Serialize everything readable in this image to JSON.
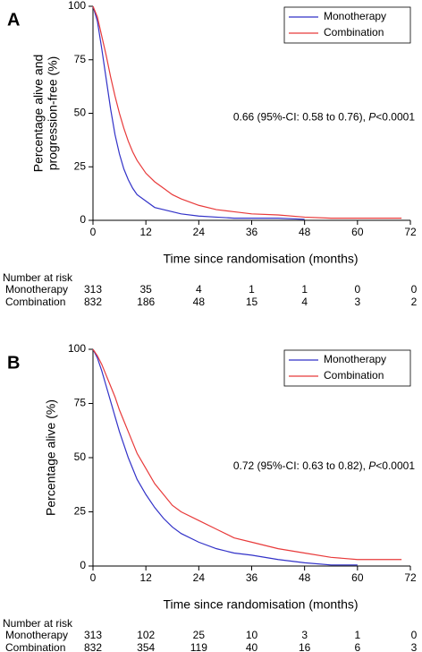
{
  "chart_data": [
    {
      "type": "line",
      "panel": "A",
      "ylabel": [
        "Percentage alive and",
        "progression-free (%)"
      ],
      "xlabel": "Time since randomisation (months)",
      "x": [
        0,
        1,
        2,
        3,
        4,
        5,
        6,
        7,
        8,
        9,
        10,
        12,
        14,
        16,
        18,
        20,
        24,
        28,
        32,
        36,
        42,
        48,
        54,
        60,
        66,
        70
      ],
      "series": [
        {
          "name": "Monotherapy",
          "color": "#3232c8",
          "values": [
            100,
            93,
            80,
            66,
            52,
            40,
            31,
            24,
            19,
            15,
            12,
            9,
            6,
            5,
            4,
            3,
            2,
            1.5,
            1,
            1,
            1,
            0.5,
            null,
            null,
            null,
            null
          ]
        },
        {
          "name": "Combination",
          "color": "#e83a3a",
          "values": [
            100,
            95,
            86,
            77,
            67,
            58,
            50,
            43,
            37,
            32,
            28,
            22,
            18,
            15,
            12,
            10,
            7,
            5,
            4,
            3,
            2.5,
            1.5,
            1,
            1,
            1,
            1
          ]
        }
      ],
      "xlim": [
        0,
        72
      ],
      "ylim": [
        0,
        100
      ],
      "xticks": [
        0,
        12,
        24,
        36,
        48,
        60,
        72
      ],
      "yticks": [
        0,
        25,
        50,
        75,
        100
      ],
      "legend": "top-right",
      "annotation": [
        "0.66 (95%-CI: 0.58 to 0.76), ",
        "P",
        "<0.0001"
      ],
      "risk_table": {
        "title": "Number  at risk",
        "rows": [
          {
            "name": "Monotherapy",
            "values": [
              313,
              35,
              4,
              1,
              1,
              0,
              0
            ]
          },
          {
            "name": "Combination",
            "values": [
              832,
              186,
              48,
              15,
              4,
              3,
              2
            ]
          }
        ]
      }
    },
    {
      "type": "line",
      "panel": "B",
      "ylabel": [
        "Percentage alive (%)"
      ],
      "xlabel": "Time since randomisation (months)",
      "x": [
        0,
        1,
        2,
        3,
        4,
        5,
        6,
        7,
        8,
        9,
        10,
        12,
        14,
        16,
        18,
        20,
        24,
        28,
        32,
        36,
        42,
        48,
        54,
        60,
        66,
        70
      ],
      "series": [
        {
          "name": "Monotherapy",
          "color": "#3232c8",
          "values": [
            100,
            96,
            90,
            83,
            76,
            69,
            62,
            56,
            50,
            45,
            40,
            33,
            27,
            22,
            18,
            15,
            11,
            8,
            6,
            5,
            3,
            1.5,
            0.5,
            0.5,
            null,
            null
          ]
        },
        {
          "name": "Combination",
          "color": "#e83a3a",
          "values": [
            100,
            97,
            93,
            88,
            83,
            78,
            72,
            67,
            62,
            57,
            52,
            45,
            38,
            33,
            28,
            25,
            21,
            17,
            13,
            11,
            8,
            6,
            4,
            3,
            3,
            3
          ]
        }
      ],
      "xlim": [
        0,
        72
      ],
      "ylim": [
        0,
        100
      ],
      "xticks": [
        0,
        12,
        24,
        36,
        48,
        60,
        72
      ],
      "yticks": [
        0,
        25,
        50,
        75,
        100
      ],
      "legend": "top-right",
      "annotation": [
        "0.72 (95%-CI: 0.63 to 0.82), ",
        "P",
        "<0.0001"
      ],
      "risk_table": {
        "title": "Number  at risk",
        "rows": [
          {
            "name": "Monotherapy",
            "values": [
              313,
              102,
              25,
              10,
              3,
              1,
              0
            ]
          },
          {
            "name": "Combination",
            "values": [
              832,
              354,
              119,
              40,
              16,
              6,
              3
            ]
          }
        ]
      }
    }
  ]
}
